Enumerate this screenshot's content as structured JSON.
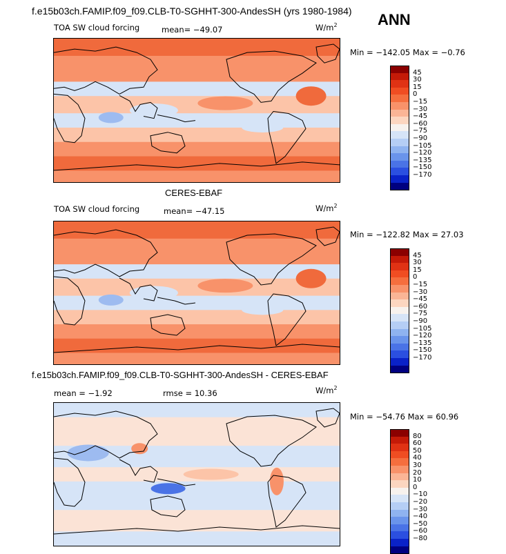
{
  "header": {
    "title": "f.e15b03ch.FAMIP.f09_f09.CLB-T0-SGHHT-300-AndesSH (yrs 1980-1984)",
    "season": "ANN"
  },
  "panels": [
    {
      "id": "model",
      "variable": "TOA SW cloud forcing",
      "stat_label": "mean= −49.07",
      "unit": "W/m",
      "unit_exp": "2",
      "minmax": "Min = −142.05 Max = −0.76",
      "scheme": "abs"
    },
    {
      "id": "obs",
      "caption": "CERES-EBAF",
      "variable": "TOA SW cloud forcing",
      "stat_label": "mean= −47.15",
      "unit": "W/m",
      "unit_exp": "2",
      "minmax": "Min = −122.82 Max = 27.03",
      "scheme": "abs"
    },
    {
      "id": "diff",
      "caption": "f.e15b03ch.FAMIP.f09_f09.CLB-T0-SGHHT-300-AndesSH - CERES-EBAF",
      "variable": "mean = −1.92",
      "stat_label": "rmse = 10.36",
      "unit": "W/m",
      "unit_exp": "2",
      "minmax": "Min = −54.76 Max = 60.96",
      "scheme": "diff"
    }
  ],
  "colorbars": {
    "abs": {
      "labels": [
        "45",
        "30",
        "15",
        "0",
        "−15",
        "−30",
        "−45",
        "−60",
        "−75",
        "−90",
        "−105",
        "−120",
        "−135",
        "−150",
        "−170"
      ],
      "colors": [
        "#8b0000",
        "#c41a08",
        "#e03214",
        "#f04d22",
        "#f56e3e",
        "#f8926a",
        "#fab596",
        "#fcd6c0",
        "#f7f2ee",
        "#d6e4f7",
        "#b5cef5",
        "#8fb3f0",
        "#6a94eb",
        "#4a73e6",
        "#2b4fe0",
        "#0a22c8",
        "#000080"
      ]
    },
    "diff": {
      "labels": [
        "80",
        "60",
        "50",
        "40",
        "30",
        "20",
        "10",
        "0",
        "−10",
        "−20",
        "−30",
        "−40",
        "−50",
        "−60",
        "−80"
      ],
      "colors": [
        "#8b0000",
        "#c41a08",
        "#e03214",
        "#f04d22",
        "#f56e3e",
        "#f8926a",
        "#fab596",
        "#fcd6c0",
        "#f7f2ee",
        "#d6e4f7",
        "#b5cef5",
        "#8fb3f0",
        "#6a94eb",
        "#4a73e6",
        "#2b4fe0",
        "#0a22c8",
        "#000080"
      ]
    }
  },
  "map_colors": {
    "strong_red": "#f06a3c",
    "mid_red": "#f8926a",
    "light_red": "#fcc4a8",
    "pale": "#fbe3d6",
    "light_blue": "#d6e4f7",
    "mid_blue": "#9dbbf0",
    "dark_blue": "#4a73e6"
  }
}
